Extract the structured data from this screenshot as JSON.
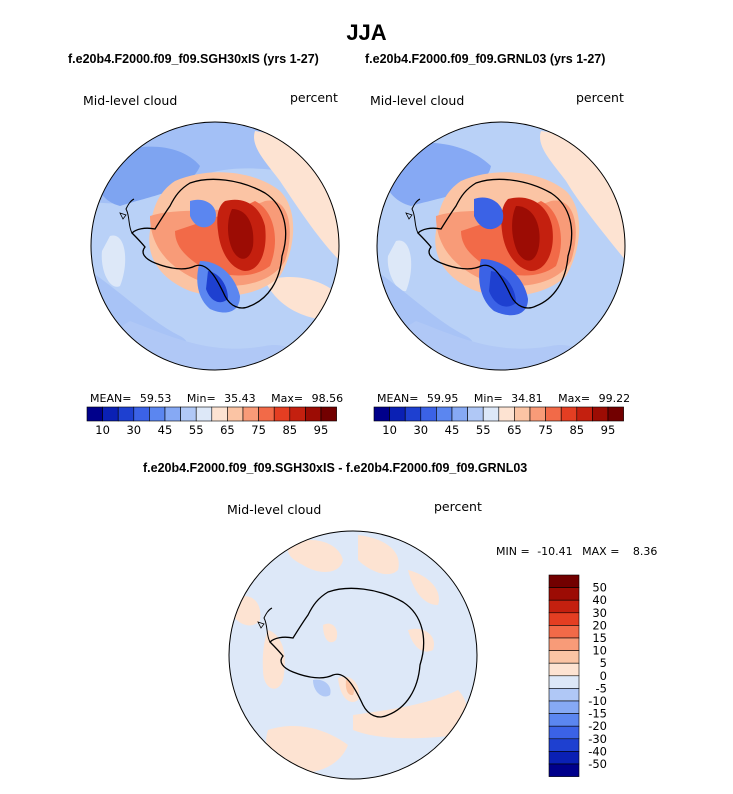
{
  "title": "JJA",
  "panels": [
    {
      "case_title": "f.e20b4.F2000.f09_f09.SGH30xIS (yrs 1-27)",
      "field_label": "Mid-level cloud",
      "units_label": "percent",
      "stats": {
        "mean_label": "MEAN=",
        "mean_value": "59.53",
        "min_label": "Min=",
        "min_value": "35.43",
        "max_label": "Max=",
        "max_value": "98.56"
      }
    },
    {
      "case_title": "f.e20b4.F2000.f09_f09.GRNL03 (yrs 1-27)",
      "field_label": "Mid-level cloud",
      "units_label": "percent",
      "stats": {
        "mean_label": "MEAN=",
        "mean_value": "59.95",
        "min_label": "Min=",
        "min_value": "34.81",
        "max_label": "Max=",
        "max_value": "99.22"
      }
    }
  ],
  "difference": {
    "title": "f.e20b4.F2000.f09_f09.SGH30xIS - f.e20b4.F2000.f09_f09.GRNL03",
    "field_label": "Mid-level cloud",
    "units_label": "percent",
    "min_label": "MIN =",
    "min_value": "-10.41",
    "max_label": "MAX =",
    "max_value": "8.36"
  },
  "chart_data": [
    {
      "type": "heatmap",
      "projection": "south-polar-stereographic",
      "title": "f.e20b4.F2000.f09_f09.SGH30xIS (yrs 1-27)",
      "variable": "Mid-level cloud",
      "units": "percent",
      "stats": {
        "mean": 59.53,
        "min": 35.43,
        "max": 98.56
      },
      "colorbar": {
        "orientation": "horizontal",
        "levels": [
          10,
          20,
          30,
          40,
          45,
          50,
          55,
          60,
          65,
          70,
          75,
          80,
          85,
          90,
          95
        ],
        "tick_labels": [
          "10",
          "30",
          "45",
          "55",
          "65",
          "75",
          "85",
          "95"
        ],
        "colors": [
          "#00008b",
          "#0a20b4",
          "#1e40d0",
          "#3b62e6",
          "#5b86f0",
          "#86a9f4",
          "#b0c8f6",
          "#dde8f8",
          "#fde3d2",
          "#fbc4a4",
          "#f89b78",
          "#f26a48",
          "#e43e22",
          "#c4200f",
          "#9c0c04",
          "#720000"
        ]
      }
    },
    {
      "type": "heatmap",
      "projection": "south-polar-stereographic",
      "title": "f.e20b4.F2000.f09_f09.GRNL03 (yrs 1-27)",
      "variable": "Mid-level cloud",
      "units": "percent",
      "stats": {
        "mean": 59.95,
        "min": 34.81,
        "max": 99.22
      },
      "colorbar": {
        "orientation": "horizontal",
        "levels": [
          10,
          20,
          30,
          40,
          45,
          50,
          55,
          60,
          65,
          70,
          75,
          80,
          85,
          90,
          95
        ],
        "tick_labels": [
          "10",
          "30",
          "45",
          "55",
          "65",
          "75",
          "85",
          "95"
        ],
        "colors": [
          "#00008b",
          "#0a20b4",
          "#1e40d0",
          "#3b62e6",
          "#5b86f0",
          "#86a9f4",
          "#b0c8f6",
          "#dde8f8",
          "#fde3d2",
          "#fbc4a4",
          "#f89b78",
          "#f26a48",
          "#e43e22",
          "#c4200f",
          "#9c0c04",
          "#720000"
        ]
      }
    },
    {
      "type": "heatmap",
      "projection": "south-polar-stereographic",
      "title": "f.e20b4.F2000.f09_f09.SGH30xIS - f.e20b4.F2000.f09_f09.GRNL03",
      "variable": "Mid-level cloud",
      "units": "percent",
      "stats": {
        "min": -10.41,
        "max": 8.36
      },
      "colorbar": {
        "orientation": "vertical",
        "levels": [
          -50,
          -40,
          -30,
          -20,
          -15,
          -10,
          -5,
          0,
          5,
          10,
          15,
          20,
          30,
          40,
          50
        ],
        "tick_labels": [
          "-50",
          "-40",
          "-30",
          "-20",
          "-15",
          "-10",
          "-5",
          "0",
          "5",
          "10",
          "15",
          "20",
          "30",
          "40",
          "50"
        ],
        "colors": [
          "#00008b",
          "#0a20b4",
          "#1e40d0",
          "#3b62e6",
          "#5b86f0",
          "#86a9f4",
          "#b0c8f6",
          "#dde8f8",
          "#fde3d2",
          "#fbc4a4",
          "#f89b78",
          "#f26a48",
          "#e43e22",
          "#c4200f",
          "#9c0c04",
          "#720000"
        ]
      }
    }
  ]
}
